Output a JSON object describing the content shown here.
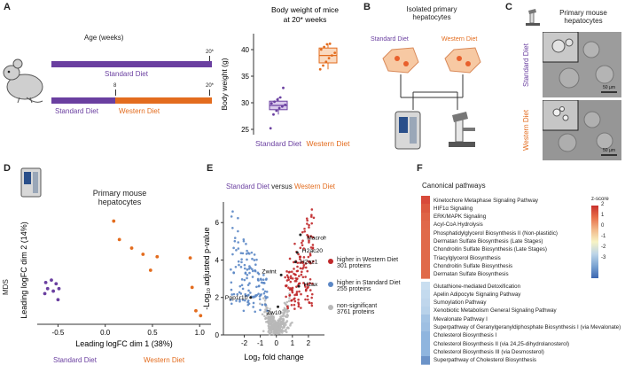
{
  "colors": {
    "standard": "#6a3fa0",
    "western": "#e36c1e",
    "up": "#c0282a",
    "down": "#5b87c5",
    "ns": "#b8b8b8"
  },
  "panel_a": {
    "label": "A",
    "age_title": "Age (weeks)",
    "bar1_label": "Standard Diet",
    "bar2_left_label": "Standard Diet",
    "bar2_right_label": "Western Diet",
    "tick_20a": "20*",
    "tick_8": "8",
    "tick_20b": "20*",
    "mouse_icon": "mouse-icon"
  },
  "panel_b": {
    "label": "B",
    "title_line1": "Isolated primary",
    "title_line2": "hepatocytes",
    "left": "Standard Diet",
    "right": "Western Diet",
    "icons": [
      "hepatocyte-icon",
      "mass-spectrometer-icon",
      "microscope-icon"
    ]
  },
  "panel_c": {
    "label": "C",
    "title_line1": "Primary mouse",
    "title_line2": "hepatocytes",
    "row1": "Standard Diet",
    "row2": "Western Diet",
    "scale1": "50 µm",
    "scale2": "50 µm"
  },
  "panel_d": {
    "label": "D",
    "title_line1": "Primary mouse",
    "title_line2": "hepatocytes",
    "mds": "MDS",
    "left": "Standard Diet",
    "right": "Western Diet"
  },
  "panel_e": {
    "label": "E",
    "title_a": "Standard Diet",
    "title_mid": " versus ",
    "title_b": "Western Diet",
    "gene_labels": [
      "Macroh2a1",
      "H2ac20",
      "H2az1",
      "H2ax",
      "Zwint",
      "Ppp1r10",
      "Zw10"
    ],
    "legend": [
      {
        "line1": "higher in Western Diet",
        "line2": "301 proteins"
      },
      {
        "line1": "higher in Standard Diet",
        "line2": "255 proteins"
      },
      {
        "line1": "non-significant",
        "line2": "3761 proteins"
      }
    ]
  },
  "panel_f": {
    "label": "F",
    "title": "Canonical pathways",
    "legend_title": "z-score",
    "legend_ticks": [
      "2",
      "1",
      "0",
      "-1",
      "-2",
      "-3"
    ],
    "up_pathways": [
      "Kinetochore Metaphase Signaling Pathway",
      "HIF1α Signaling",
      "ERK/MAPK Signaling",
      "Acyl-CoA Hydrolysis",
      "Phosphatidylglycerol Biosynthesis II (Non-plastidic)",
      "Dermatan Sulfate Biosynthesis (Late Stages)",
      "Chondroitin Sulfate Biosynthesis (Late Stages)",
      "Triacylglycerol Biosynthesis",
      "Chondroitin Sulfate Biosynthesis",
      "Dermatan Sulfate Biosynthesis"
    ],
    "down_pathways": [
      "Glutathione-mediated Detoxification",
      "Apelin Adipocyte Signaling Pathway",
      "Sumoylation Pathway",
      "Xenobiotic Metabolism General Signaling Pathway",
      "Mevalonate Pathway I",
      "Superpathway of Geranylgeranyldiphosphate Biosynthesis I (via Mevalonate)",
      "Cholesterol Biosynthesis I",
      "Cholesterol Biosynthesis II (via 24,25-dihydrolanosterol)",
      "Cholesterol Biosynthesis III (via Desmosterol)",
      "Superpathway of Cholesterol Biosynthesis"
    ],
    "up_colors": [
      "#d84a3a",
      "#dc5a40",
      "#df6446",
      "#e0684a",
      "#e06a4a",
      "#e06a4a",
      "#e06a4a",
      "#e06a4a",
      "#e06a4a",
      "#e06a4a"
    ],
    "down_colors": [
      "#c9def0",
      "#c3daee",
      "#bfd6ec",
      "#b8d2ea",
      "#a4c4e4",
      "#9ebfe2",
      "#8fb5de",
      "#8fb5de",
      "#8fb5de",
      "#6c93c8"
    ]
  },
  "chart_data": [
    {
      "type": "box",
      "title": "Body weight of mice at 20* weeks",
      "ylabel": "Body weight (g)",
      "categories": [
        "Standard Diet",
        "Western Diet"
      ],
      "ylim": [
        24,
        43
      ],
      "yticks": [
        25,
        30,
        35,
        40
      ],
      "boxes": [
        {
          "name": "Standard Diet",
          "q1": 28.7,
          "median": 29.5,
          "q3": 30.3,
          "whisker_low": 27.8,
          "whisker_high": 31.0,
          "points": [
            25.2,
            27.8,
            28.5,
            29.0,
            29.3,
            29.6,
            29.9,
            30.2,
            30.6,
            31.0,
            32.8
          ]
        },
        {
          "name": "Western Diet",
          "q1": 37.5,
          "median": 38.9,
          "q3": 40.3,
          "whisker_low": 36.3,
          "whisker_high": 41.1,
          "points": [
            36.3,
            37.0,
            37.7,
            38.4,
            38.9,
            39.4,
            40.0,
            40.5,
            41.0,
            41.1
          ]
        }
      ]
    },
    {
      "type": "scatter",
      "title": "Primary mouse hepatocytes",
      "xlabel": "Leading logFC dim 1 (38%)",
      "ylabel": "Leading logFC dim 2 (14%)",
      "xticks": [
        -0.5,
        0.0,
        0.5,
        1.0
      ],
      "xlim": [
        -0.72,
        1.12
      ],
      "ylim": [
        -0.42,
        0.46
      ],
      "series": [
        {
          "name": "Standard Diet",
          "points": [
            [
              -0.63,
              -0.08
            ],
            [
              -0.57,
              -0.06
            ],
            [
              -0.52,
              -0.09
            ],
            [
              -0.61,
              -0.13
            ],
            [
              -0.55,
              -0.15
            ],
            [
              -0.49,
              -0.13
            ],
            [
              -0.64,
              -0.17
            ],
            [
              -0.5,
              -0.22
            ]
          ]
        },
        {
          "name": "Western Diet",
          "points": [
            [
              0.09,
              0.42
            ],
            [
              0.15,
              0.27
            ],
            [
              0.28,
              0.2
            ],
            [
              0.4,
              0.15
            ],
            [
              0.55,
              0.13
            ],
            [
              0.9,
              0.12
            ],
            [
              0.48,
              0.02
            ],
            [
              0.92,
              -0.12
            ],
            [
              1.01,
              -0.35
            ],
            [
              0.96,
              -0.31
            ]
          ]
        }
      ]
    },
    {
      "type": "scatter",
      "title": "Standard Diet versus Western Diet",
      "xlabel": "Log₂ fold change",
      "ylabel": "-Log₁₀ adjusted p-value",
      "xticks": [
        -2,
        -1,
        0,
        1,
        2
      ],
      "yticks": [
        0,
        2,
        4,
        6
      ],
      "xlim": [
        -3.3,
        3.0
      ],
      "ylim": [
        0,
        7.1
      ],
      "series": [
        {
          "name": "higher in Western Diet",
          "count": 301
        },
        {
          "name": "higher in Standard Diet",
          "count": 255
        },
        {
          "name": "non-significant",
          "count": 3761
        }
      ]
    }
  ]
}
